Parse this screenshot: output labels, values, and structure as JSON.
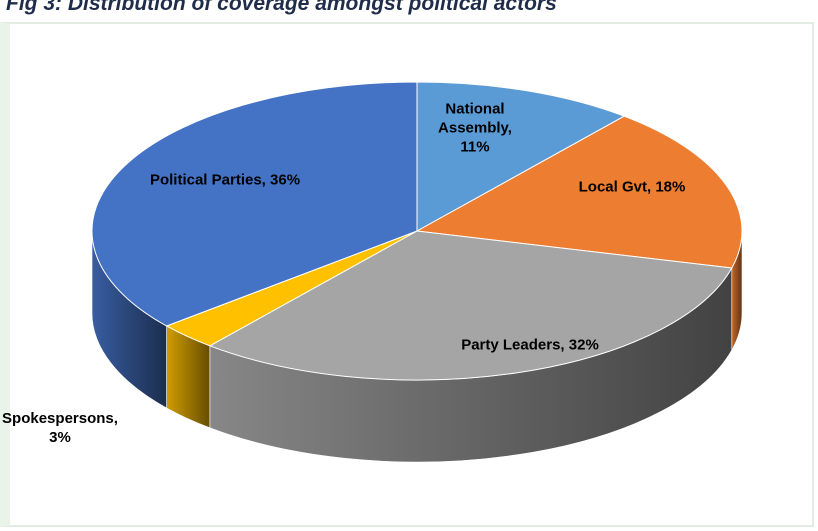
{
  "chart_data": {
    "type": "pie3d",
    "title": "Fig 3: Distribution of coverage amongst political actors",
    "values": [
      11,
      18,
      32,
      3,
      36
    ],
    "value_labels": [
      "National Assembly, 11%",
      "Local Gvt, 18%",
      "Party Leaders, 32%",
      "Spokespersons, 3%",
      "Political Parties, 36%"
    ],
    "colors": [
      "#5b9bd5",
      "#ed7d31",
      "#a5a5a5",
      "#ffc000",
      "#4472c4"
    ]
  }
}
